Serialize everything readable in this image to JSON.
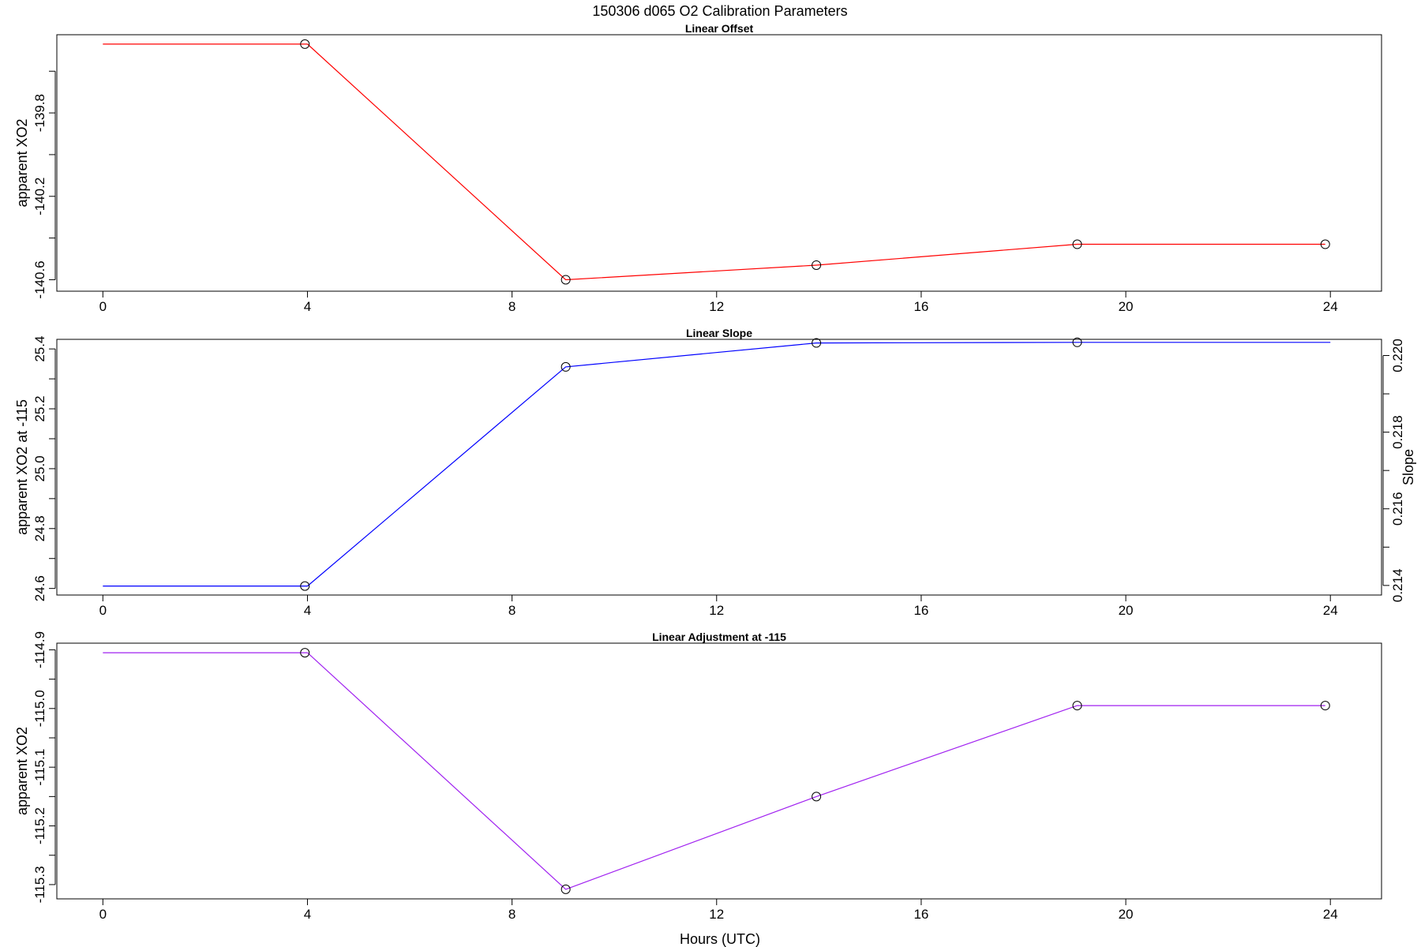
{
  "figure": {
    "title": "150306   d065   O2 Calibration Parameters",
    "xlabel": "Hours (UTC)"
  },
  "chart_data": [
    {
      "type": "line",
      "title": "Linear Offset",
      "ylabel": "apparent XO2",
      "xlim": [
        -0.9,
        25
      ],
      "ylim": [
        -140.655,
        -139.425
      ],
      "x_ticks": [
        0,
        4,
        8,
        12,
        16,
        20,
        24
      ],
      "y_ticks": [
        -140.6,
        -140.2,
        -139.8
      ],
      "y_tick_labels": [
        "-140.6",
        "-140.2",
        "-139.8"
      ],
      "color": "#ff0000",
      "line_x": [
        0,
        4,
        9.05,
        13.95,
        19.05,
        23.9
      ],
      "line_y": [
        -139.47,
        -139.47,
        -140.6,
        -140.53,
        -140.43,
        -140.43
      ],
      "points": {
        "x": [
          3.95,
          9.05,
          13.95,
          19.05,
          23.9
        ],
        "y": [
          -139.47,
          -140.6,
          -140.53,
          -140.43,
          -140.43
        ]
      }
    },
    {
      "type": "line",
      "title": "Linear Slope",
      "ylabel": "apparent XO2 at -115",
      "y2label": "Slope",
      "xlim": [
        -0.9,
        25
      ],
      "ylim": [
        24.578,
        25.432
      ],
      "x_ticks": [
        0,
        4,
        8,
        12,
        16,
        20,
        24
      ],
      "y_ticks": [
        24.6,
        24.8,
        25.0,
        25.2,
        25.4
      ],
      "y_tick_labels": [
        "24.6",
        "24.8",
        "25.0",
        "25.2",
        "25.4"
      ],
      "y2_ticks": [
        0.214,
        0.216,
        0.218,
        0.22
      ],
      "y2_tick_labels": [
        "0.214",
        "0.216",
        "0.218",
        "0.220"
      ],
      "y2_minor_ticks": [
        0.215,
        0.217,
        0.219
      ],
      "y2_map": [
        0.214,
        24.61,
        0.22,
        25.378
      ],
      "color": "#0000ff",
      "line_x": [
        0,
        4,
        9.05,
        13.95,
        19.05,
        24
      ],
      "line_y": [
        24.608,
        24.608,
        25.34,
        25.42,
        25.422,
        25.422
      ],
      "points": {
        "x": [
          3.95,
          9.05,
          13.95,
          19.05
        ],
        "y": [
          24.608,
          25.34,
          25.42,
          25.422
        ]
      }
    },
    {
      "type": "line",
      "title": "Linear Adjustment at -115",
      "ylabel": "apparent XO2",
      "xlim": [
        -0.9,
        25
      ],
      "ylim": [
        -115.3243,
        -114.8887
      ],
      "x_ticks": [
        0,
        4,
        8,
        12,
        16,
        20,
        24
      ],
      "y_ticks": [
        -115.3,
        -115.2,
        -115.1,
        -115.0,
        -114.9
      ],
      "y_tick_labels": [
        "-115.3",
        "-115.2",
        "-115.1",
        "-115.0",
        "-114.9"
      ],
      "color": "#a020f0",
      "line_x": [
        0,
        4,
        9.05,
        13.95,
        19.05,
        23.9
      ],
      "line_y": [
        -114.905,
        -114.905,
        -115.308,
        -115.15,
        -114.995,
        -114.995
      ],
      "points": {
        "x": [
          3.95,
          9.05,
          13.95,
          19.05,
          23.9
        ],
        "y": [
          -114.905,
          -115.308,
          -115.15,
          -114.995,
          -114.995
        ]
      }
    }
  ]
}
